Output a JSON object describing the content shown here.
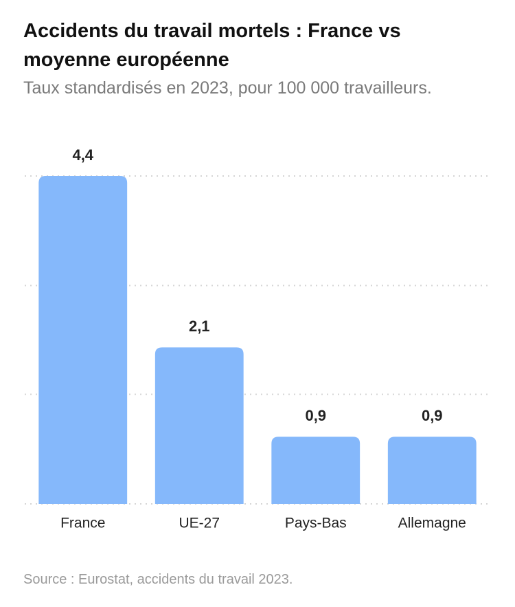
{
  "chart_data": {
    "type": "bar",
    "title": "Accidents du travail mortels : France vs moyenne européenne",
    "subtitle": "Taux standardisés en 2023, pour 100 000 travailleurs.",
    "source": "Source : Eurostat, accidents du travail 2023.",
    "categories": [
      "France",
      "UE-27",
      "Pays-Bas",
      "Allemagne"
    ],
    "values": [
      4.4,
      2.1,
      0.9,
      0.9
    ],
    "value_labels": [
      "4,4",
      "2,1",
      "0,9",
      "0,9"
    ],
    "color": "#85b8fb",
    "ylim": [
      0,
      4.4
    ],
    "yticks": [
      0,
      1.47,
      2.93,
      4.4
    ],
    "grid": true
  }
}
